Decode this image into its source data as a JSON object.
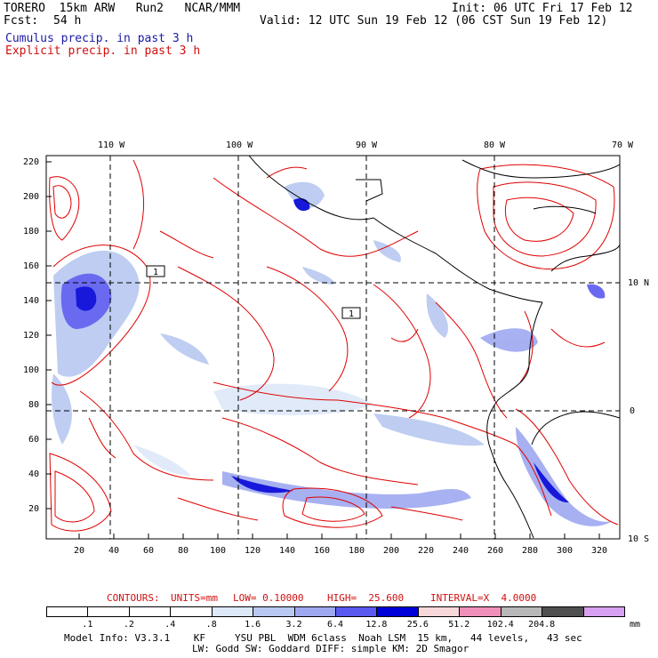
{
  "header": {
    "model": "TORERO  15km ARW   Run2   NCAR/MMM",
    "init": "Init: 06 UTC Fri 17 Feb 12",
    "fcst_label": "Fcst:",
    "fcst_value": "54 h",
    "valid": "Valid: 12 UTC Sun 19 Feb 12 (06 CST Sun 19 Feb 12)",
    "field1": "Cumulus precip. in past 3 h",
    "field2": "Explicit precip. in past 3 h"
  },
  "map": {
    "lon_labels": [
      "110 W",
      "100 W",
      "90 W",
      "80 W",
      "70 W"
    ],
    "lat_labels_right": [
      "10 N",
      "0",
      "10 S"
    ],
    "y_ticks": [
      "220",
      "200",
      "180",
      "160",
      "140",
      "120",
      "100",
      "80",
      "60",
      "40",
      "20"
    ],
    "x_ticks": [
      "20",
      "40",
      "60",
      "80",
      "100",
      "120",
      "140",
      "160",
      "180",
      "200",
      "220",
      "240",
      "260",
      "280",
      "300",
      "320"
    ],
    "box_labels": [
      "1",
      "1"
    ]
  },
  "contours": {
    "label": "CONTOURS:",
    "units": "UNITS=mm",
    "low": "LOW= 0.10000",
    "high": "HIGH=  25.600",
    "interval": "INTERVAL=X  4.0000"
  },
  "colorbar": {
    "labels": [
      ".1",
      ".2",
      ".4",
      ".8",
      "1.6",
      "3.2",
      "6.4",
      "12.8",
      "25.6",
      "51.2",
      "102.4",
      "204.8"
    ],
    "unit": "mm",
    "colors": [
      "#ffffff",
      "#ffffff",
      "#ffffff",
      "#ffffff",
      "#dde8f8",
      "#b8c8f0",
      "#9ea8f0",
      "#5a5af0",
      "#0000d8",
      "#f8d8d8",
      "#f090b8",
      "#b8b8b8",
      "#505050",
      "#d8a0f0"
    ]
  },
  "footer": {
    "line1": "Model Info: V3.3.1    KF     YSU PBL  WDM 6class  Noah LSM  15 km,   44 levels,   43 sec",
    "line2": "LW: Godd SW: Goddard DIFF: simple KM: 2D Smagor"
  }
}
